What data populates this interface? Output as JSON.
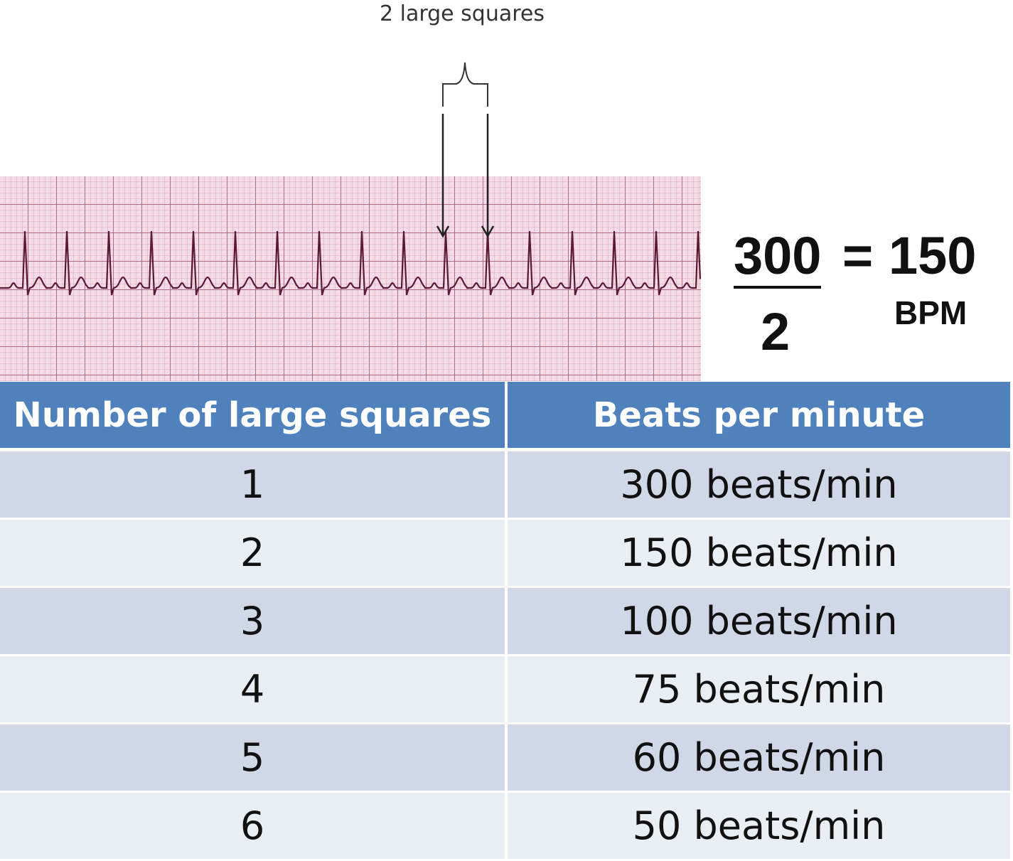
{
  "annotation": "2 large squares",
  "formula": {
    "numerator": "300",
    "equals": "=",
    "result": "150",
    "denominator": "2",
    "unit": "BPM"
  },
  "table": {
    "header": [
      "Number of large squares",
      "Beats per minute"
    ],
    "rows": [
      [
        "1",
        "300 beats/min"
      ],
      [
        "2",
        "150 beats/min"
      ],
      [
        "3",
        "100 beats/min"
      ],
      [
        "4",
        "75 beats/min"
      ],
      [
        "5",
        "60 beats/min"
      ],
      [
        "6",
        "50 beats/min"
      ]
    ]
  }
}
